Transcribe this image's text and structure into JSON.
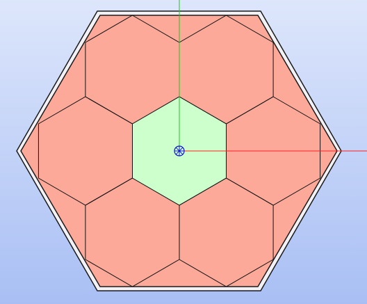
{
  "viewport": {
    "background_top": "#dde6fb",
    "background_bottom": "#a9bff4",
    "boundary_outer_color": "#1a1a1a",
    "boundary_fill": "#f2f2f6",
    "boundary_inner_color": "#1a1a1a"
  },
  "lattice": {
    "rings": 1,
    "cell_count": 7,
    "cell_outline_color": "#111111",
    "fuel_fill": "#fca99a",
    "center_fill": "#ccffcc"
  },
  "axes": {
    "x_color": "#ff2020",
    "y_color": "#22c422",
    "origin_marker_color": "#1010dd",
    "origin_marker_icon": "origin-sphere-icon"
  }
}
